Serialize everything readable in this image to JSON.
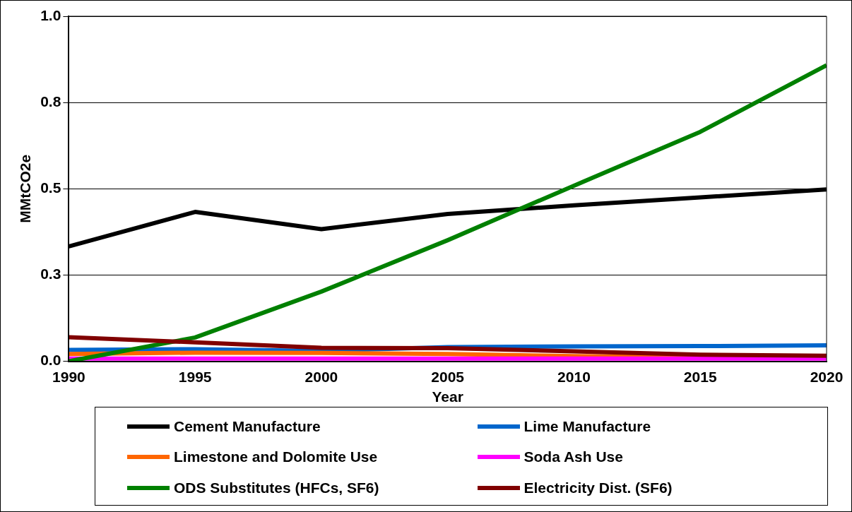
{
  "chart_data": {
    "type": "line",
    "xlabel": "Year",
    "ylabel": "MMtCO2e",
    "x": [
      1990,
      1995,
      2000,
      2005,
      2010,
      2015,
      2020
    ],
    "xlim": [
      1990,
      2020
    ],
    "xticks": [
      1990,
      1995,
      2000,
      2005,
      2010,
      2015,
      2020
    ],
    "ylim": [
      0,
      1
    ],
    "yticks": [
      {
        "value": 0,
        "label": "0.0"
      },
      {
        "value": 0.25,
        "label": "0.3"
      },
      {
        "value": 0.5,
        "label": "0.5"
      },
      {
        "value": 0.75,
        "label": "0.8"
      },
      {
        "value": 1,
        "label": "1.0"
      }
    ],
    "grid": "y",
    "legend": "bottom",
    "marker": "none",
    "line_style": "solid",
    "series": [
      {
        "name": "Cement Manufacture",
        "color": "#000000",
        "values": [
          0.333,
          0.433,
          0.383,
          0.427,
          0.452,
          0.475,
          0.498
        ]
      },
      {
        "name": "Lime Manufacture",
        "color": "#0066cc",
        "values": [
          0.033,
          0.035,
          0.03,
          0.041,
          0.043,
          0.044,
          0.046
        ]
      },
      {
        "name": "Limestone and Dolomite Use",
        "color": "#ff6600",
        "values": [
          0.021,
          0.025,
          0.024,
          0.021,
          0.015,
          0.012,
          0.01
        ]
      },
      {
        "name": "Soda Ash Use",
        "color": "#ff00ff",
        "values": [
          0.008,
          0.008,
          0.008,
          0.008,
          0.008,
          0.008,
          0.008
        ]
      },
      {
        "name": "ODS Substitutes (HFCs, SF6)",
        "color": "#008000",
        "values": [
          0,
          0.069,
          0.202,
          0.351,
          0.509,
          0.665,
          0.858
        ]
      },
      {
        "name": "Electricity Dist. (SF6)",
        "color": "#800000",
        "values": [
          0.07,
          0.055,
          0.039,
          0.038,
          0.029,
          0.019,
          0.016
        ]
      }
    ]
  }
}
